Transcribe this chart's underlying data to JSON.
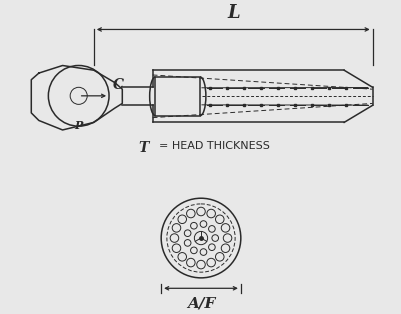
{
  "bg_color": "#e8e8e8",
  "line_color": "#2a2a2a",
  "label_L": "L",
  "label_C": "C",
  "label_P": "P",
  "label_T": "T",
  "label_AF": "A/F",
  "text_head_thickness": "= HEAD THICKNESS"
}
